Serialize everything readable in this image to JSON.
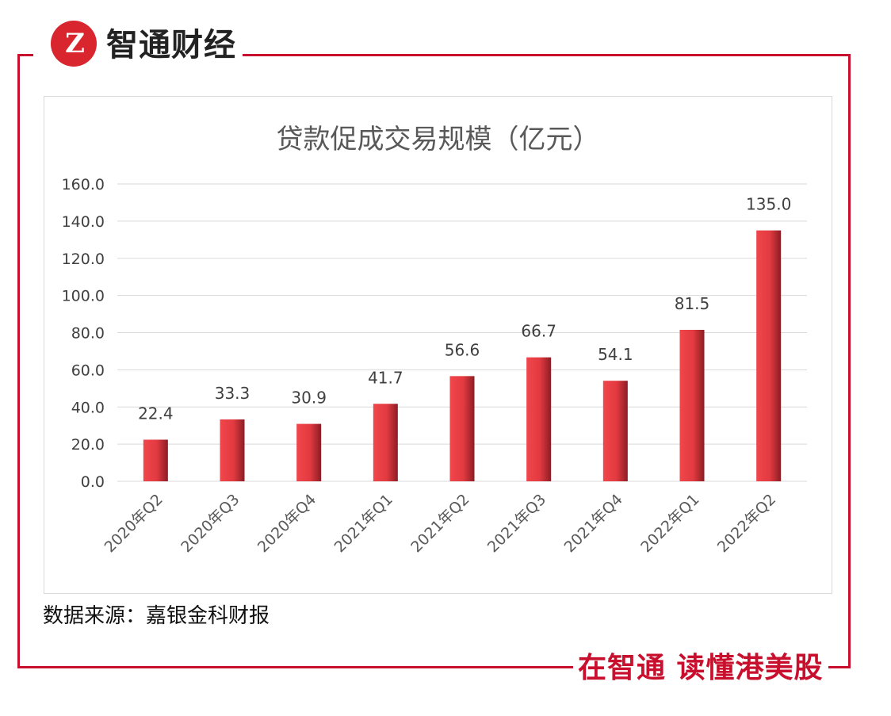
{
  "brand": {
    "logo_glyph": "Z",
    "name": "智通财经",
    "slogan": "在智通 读懂港美股"
  },
  "source": "数据来源：嘉银金科财报",
  "colors": {
    "frame": "#c8102e",
    "bar_light": "#f0464c",
    "bar_dark": "#8c1d24"
  },
  "chart_data": {
    "type": "bar",
    "title": "贷款促成交易规模（亿元）",
    "categories": [
      "2020年Q2",
      "2020年Q3",
      "2020年Q4",
      "2021年Q1",
      "2021年Q2",
      "2021年Q3",
      "2021年Q4",
      "2022年Q1",
      "2022年Q2"
    ],
    "values": [
      22.4,
      33.3,
      30.9,
      41.7,
      56.6,
      66.7,
      54.1,
      81.5,
      135.0
    ],
    "data_labels": [
      "22.4",
      "33.3",
      "30.9",
      "41.7",
      "56.6",
      "66.7",
      "54.1",
      "81.5",
      "135.0"
    ],
    "yticks": [
      "0.0",
      "20.0",
      "40.0",
      "60.0",
      "80.0",
      "100.0",
      "120.0",
      "140.0",
      "160.0"
    ],
    "ylim": [
      0,
      160
    ],
    "xlabel": "",
    "ylabel": "",
    "grid": true,
    "legend": "none"
  }
}
